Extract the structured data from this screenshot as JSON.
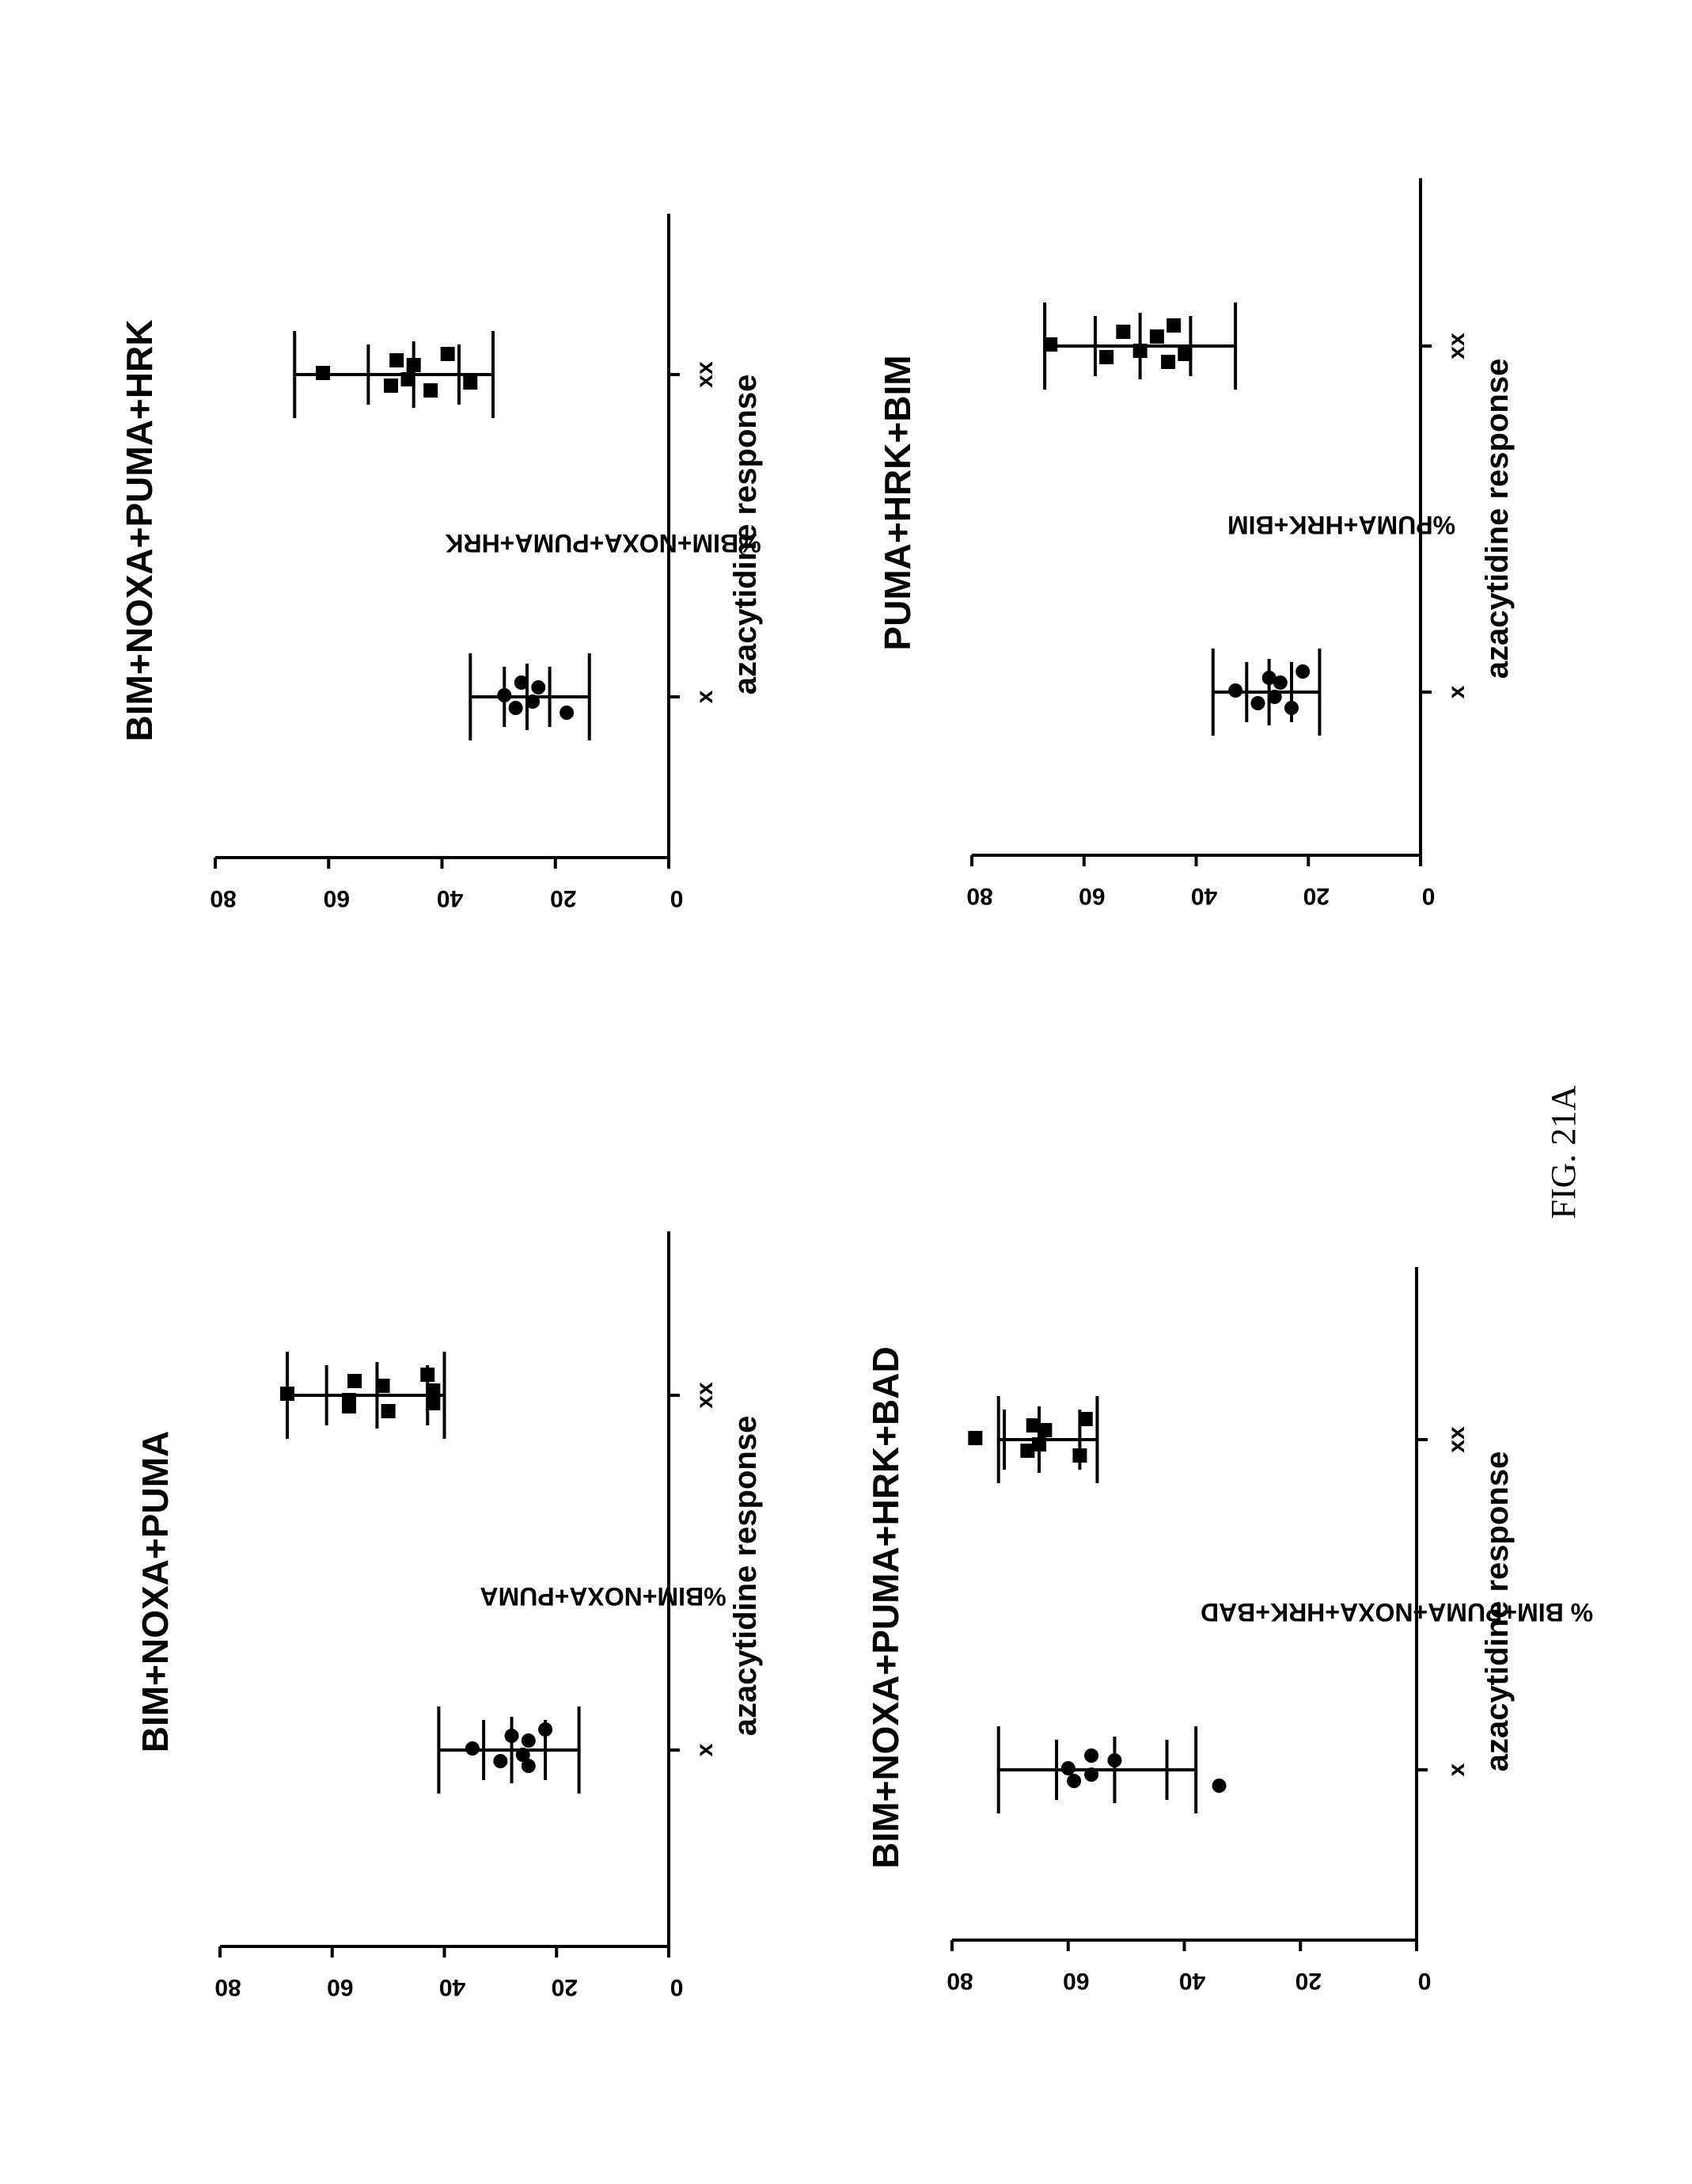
{
  "figure_label": "FIG. 21A",
  "chart_data": [
    {
      "type": "scatter",
      "title": "BIM+NOXA+PUMA",
      "ylabel": "%BIM+NOXA+PUMA",
      "xlabel": "azacytidine response",
      "ylim": [
        0,
        80
      ],
      "yticks": [
        0,
        20,
        40,
        60,
        80
      ],
      "categories": [
        "x",
        "xx"
      ],
      "series": [
        {
          "category": "x",
          "marker": "circle",
          "values": [
            35,
            30,
            28,
            26,
            25,
            25,
            22
          ],
          "mean": 28,
          "sd": [
            22,
            33
          ],
          "range": [
            16,
            41
          ]
        },
        {
          "category": "xx",
          "marker": "square",
          "values": [
            68,
            57,
            56,
            57,
            51,
            50,
            43,
            42,
            42
          ],
          "mean": 52,
          "sd": [
            43,
            61
          ],
          "range": [
            40,
            68
          ]
        }
      ]
    },
    {
      "type": "scatter",
      "title": "BIM+NOXA+PUMA+HRK",
      "ylabel": "%BIM+NOXA+PUMA+HRK",
      "xlabel": "azacytidine response",
      "ylim": [
        0,
        80
      ],
      "yticks": [
        0,
        20,
        40,
        60,
        80
      ],
      "categories": [
        "x",
        "xx"
      ],
      "series": [
        {
          "category": "x",
          "marker": "circle",
          "values": [
            29,
            27,
            26,
            24,
            23,
            18
          ],
          "mean": 25,
          "sd": [
            21,
            29
          ],
          "range": [
            14,
            35
          ]
        },
        {
          "category": "xx",
          "marker": "square",
          "values": [
            61,
            49,
            48,
            46,
            45,
            42,
            39,
            35
          ],
          "mean": 45,
          "sd": [
            37,
            53
          ],
          "range": [
            31,
            66
          ]
        }
      ]
    },
    {
      "type": "scatter",
      "title": "BIM+NOXA+PUMA+HRK+BAD",
      "ylabel": "% BIM+PUMA+NOXA+HRK+BAD",
      "xlabel": "azacytidine response",
      "ylim": [
        0,
        80
      ],
      "yticks": [
        0,
        20,
        40,
        60,
        80
      ],
      "categories": [
        "x",
        "xx"
      ],
      "series": [
        {
          "category": "x",
          "marker": "circle",
          "values": [
            60,
            59,
            56,
            56,
            52,
            34
          ],
          "mean": 52,
          "sd": [
            43,
            62
          ],
          "range": [
            38,
            72
          ]
        },
        {
          "category": "xx",
          "marker": "square",
          "values": [
            76,
            67,
            66,
            65,
            64,
            58,
            57
          ],
          "mean": 65,
          "sd": [
            58,
            71
          ],
          "range": [
            55,
            72
          ]
        }
      ]
    },
    {
      "type": "scatter",
      "title": "PUMA+HRK+BIM",
      "ylabel": "%PUMA+HRK+BIM",
      "xlabel": "azacytidine response",
      "ylim": [
        0,
        80
      ],
      "yticks": [
        0,
        20,
        40,
        60,
        80
      ],
      "categories": [
        "x",
        "xx"
      ],
      "series": [
        {
          "category": "x",
          "marker": "circle",
          "values": [
            33,
            29,
            27,
            26,
            25,
            23,
            21
          ],
          "mean": 27,
          "sd": [
            23,
            31
          ],
          "range": [
            18,
            37
          ]
        },
        {
          "category": "xx",
          "marker": "square",
          "values": [
            66,
            56,
            53,
            50,
            47,
            45,
            44,
            42
          ],
          "mean": 50,
          "sd": [
            41,
            58
          ],
          "range": [
            33,
            67
          ]
        }
      ]
    }
  ]
}
